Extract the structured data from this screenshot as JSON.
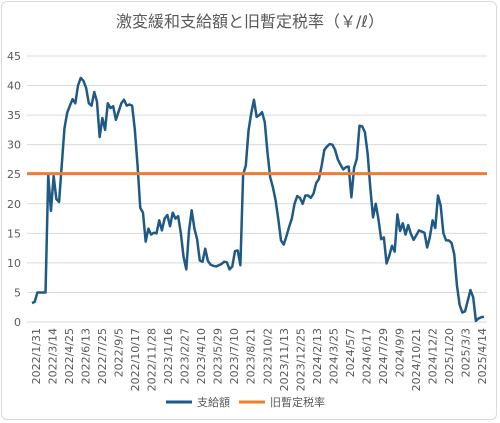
{
  "chart_data": {
    "type": "line",
    "title": "激変緩和支給額と旧暫定税率（￥/ℓ）",
    "xlabel": "",
    "ylabel": "",
    "ylim": [
      0,
      45
    ],
    "yticks": [
      "0",
      "5",
      "10",
      "15",
      "20",
      "25",
      "30",
      "35",
      "40",
      "45"
    ],
    "grid": true,
    "legend_position": "bottom",
    "x_tick_labels": [
      "2022/1/31",
      "2022/3/14",
      "2022/4/25",
      "2022/6/13",
      "2022/7/25",
      "2022/9/5",
      "2022/10/17",
      "2022/11/28",
      "2023/1/16",
      "2023/2/27",
      "2023/4/10",
      "2023/5/29",
      "2023/7/10",
      "2023/8/21",
      "2023/10/2",
      "2023/11/13",
      "2023/12/25",
      "2024/2/13",
      "2024/3/25",
      "2024/5/7",
      "2024/6/17",
      "2024/7/29",
      "2024/9/9",
      "2024/10/21",
      "2024/12/2",
      "2025/1/20",
      "2025/3/3",
      "2025/4/14"
    ],
    "series": [
      {
        "name": "支給額",
        "color": "#1f5a86",
        "values": [
          3.2,
          3.4,
          5.0,
          5.0,
          5.0,
          5.0,
          24.8,
          18.8,
          24.7,
          20.8,
          20.3,
          26.6,
          32.8,
          35.4,
          36.6,
          37.7,
          37.0,
          40.0,
          41.3,
          40.8,
          39.6,
          37.0,
          36.6,
          38.9,
          37.3,
          31.3,
          34.5,
          32.5,
          37.0,
          36.2,
          36.5,
          34.2,
          35.6,
          37.0,
          37.6,
          36.6,
          36.8,
          36.6,
          32.5,
          26.5,
          19.3,
          18.5,
          13.6,
          15.8,
          14.8,
          15.1,
          15.0,
          17.2,
          15.5,
          17.5,
          18.1,
          16.2,
          18.5,
          17.5,
          17.9,
          15.0,
          11.0,
          8.9,
          15.4,
          18.9,
          15.8,
          14.0,
          10.4,
          10.2,
          12.4,
          10.3,
          9.7,
          9.5,
          9.4,
          9.6,
          9.8,
          10.2,
          10.1,
          8.9,
          9.4,
          12.0,
          12.1,
          9.6,
          24.9,
          26.5,
          32.4,
          35.3,
          37.6,
          34.7,
          35.0,
          35.5,
          33.8,
          28.7,
          24.5,
          22.8,
          20.6,
          17.4,
          13.8,
          13.1,
          14.5,
          16.1,
          17.5,
          20.0,
          21.3,
          21.0,
          20.0,
          21.4,
          21.4,
          21.0,
          21.7,
          23.5,
          24.2,
          26.4,
          29.1,
          29.7,
          30.1,
          30.0,
          29.1,
          27.5,
          26.6,
          25.8,
          26.2,
          26.3,
          21.1,
          26.1,
          27.6,
          33.2,
          33.1,
          32.1,
          28.5,
          22.7,
          17.7,
          20.0,
          17.4,
          14.0,
          14.3,
          9.9,
          11.2,
          12.9,
          11.9,
          18.2,
          15.4,
          16.7,
          14.8,
          16.4,
          14.9,
          13.9,
          14.7,
          15.5,
          15.3,
          15.1,
          12.6,
          14.4,
          17.2,
          15.9,
          21.4,
          19.7,
          15.0,
          13.8,
          13.8,
          13.4,
          11.5,
          6.2,
          2.9,
          1.6,
          1.8,
          3.6,
          5.4,
          4.2,
          0.2,
          0.6,
          0.8,
          0.9
        ]
      },
      {
        "name": "旧暫定税率",
        "color": "#ed7d31",
        "values": [
          25.1,
          25.1
        ]
      }
    ]
  }
}
